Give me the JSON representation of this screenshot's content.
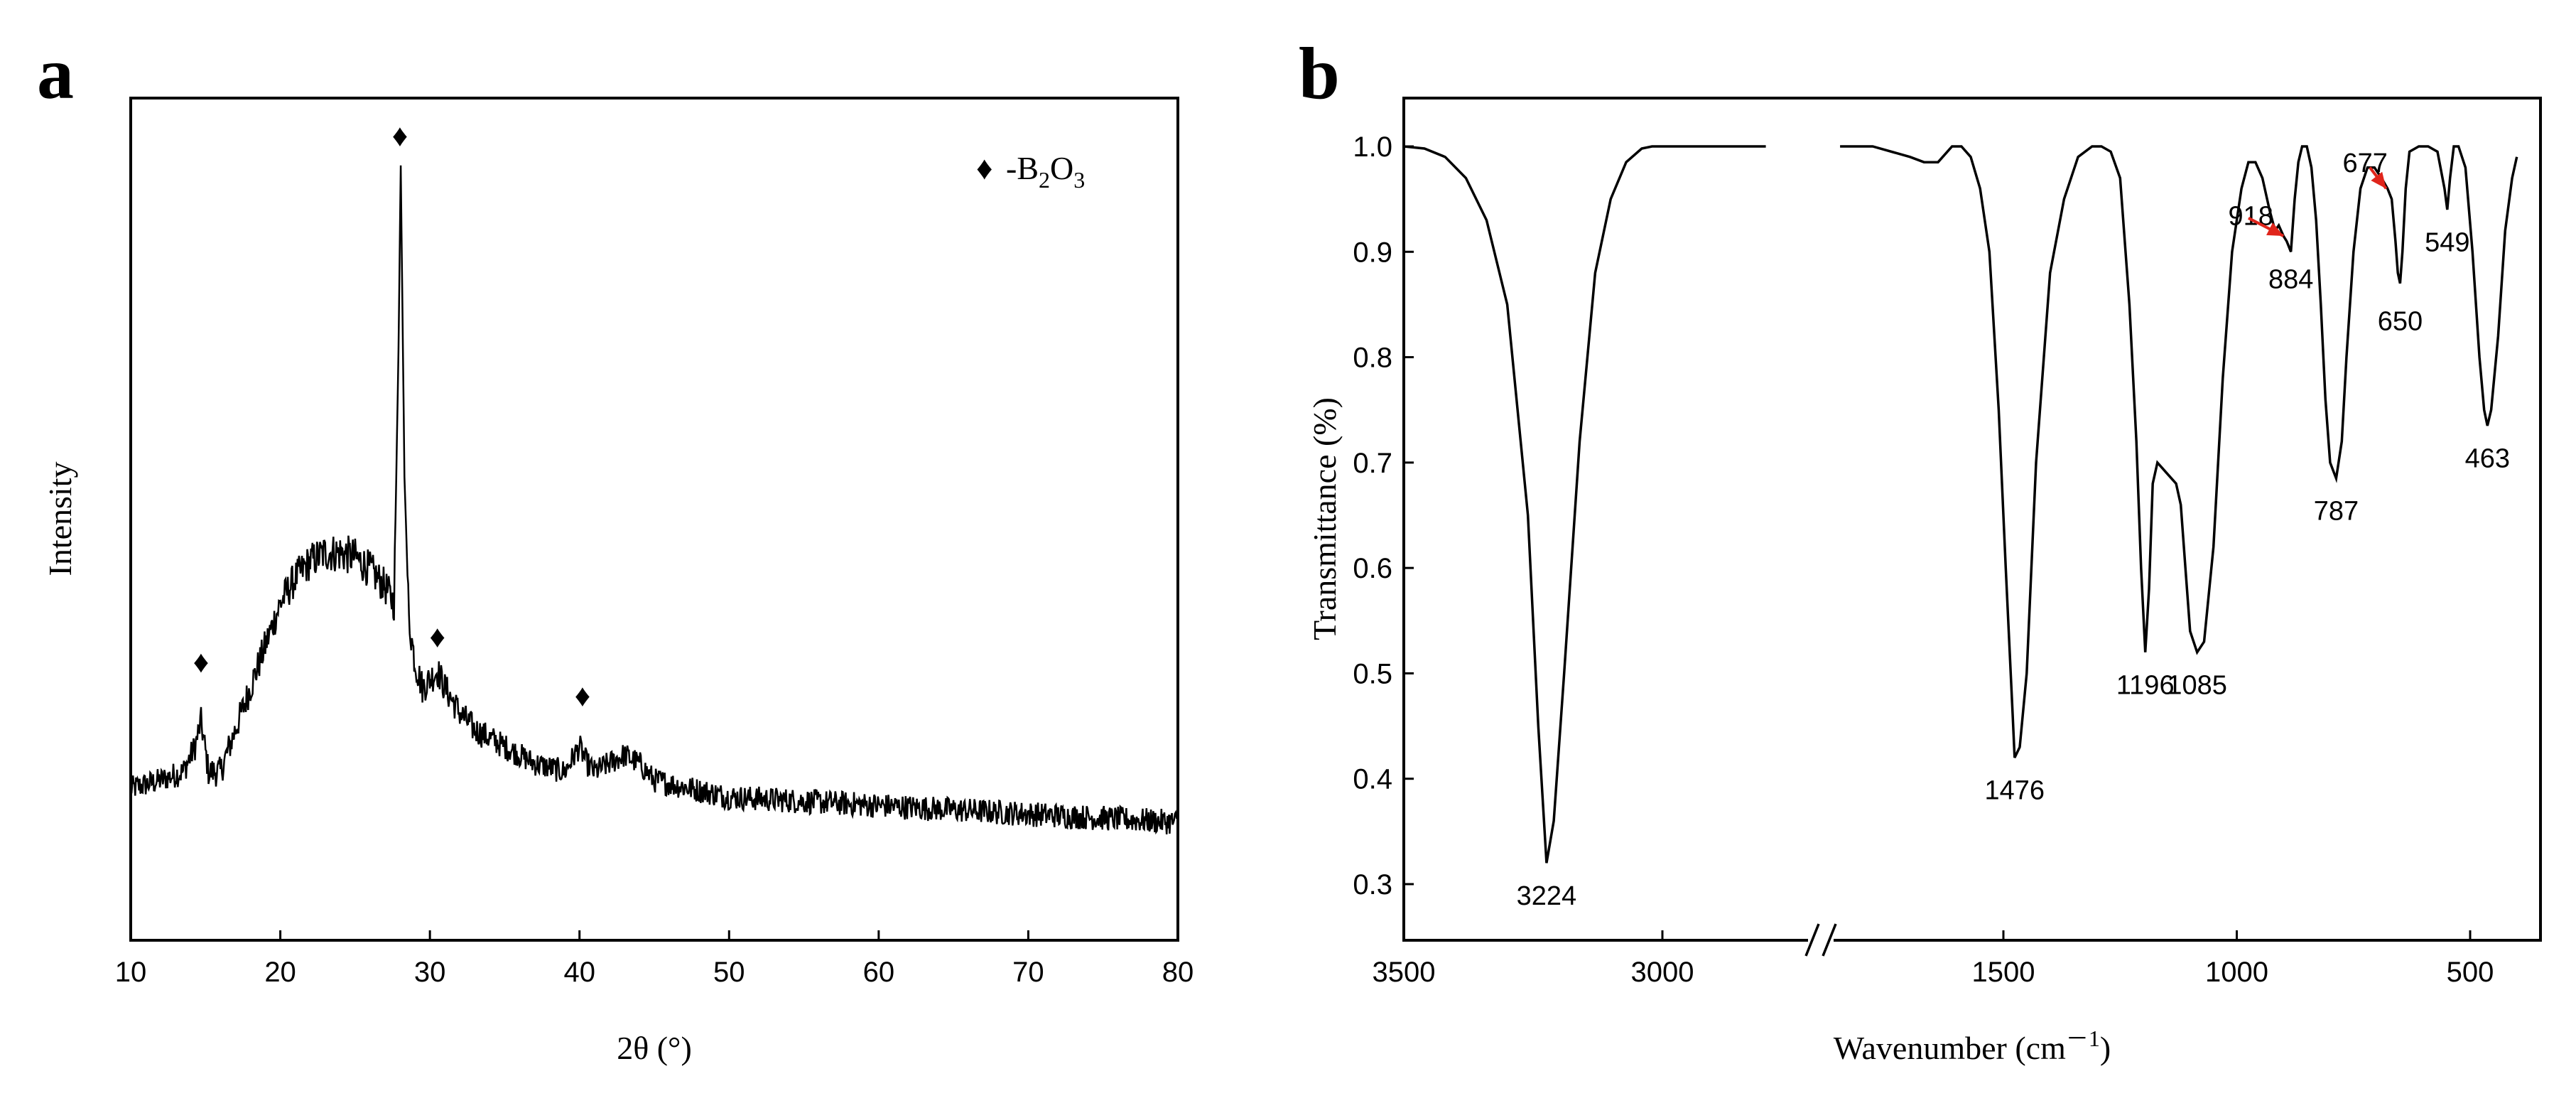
{
  "chart_data": [
    {
      "panel_label": "a",
      "type": "line",
      "title": "",
      "xlabel": "2θ (°)",
      "ylabel": "Intensity",
      "xlim": [
        10,
        80
      ],
      "ylim": [
        0,
        1
      ],
      "xticks": [
        10,
        20,
        30,
        40,
        50,
        60,
        70,
        80
      ],
      "legend": {
        "marker": "♦",
        "text": "-B",
        "sub1": "2",
        "mid": "O",
        "sub2": "3",
        "position": "top-right"
      },
      "baseline_points": [
        [
          10,
          0.18
        ],
        [
          12,
          0.19
        ],
        [
          13.5,
          0.2
        ],
        [
          14.3,
          0.23
        ],
        [
          14.7,
          0.26
        ],
        [
          15.2,
          0.2
        ],
        [
          16,
          0.2
        ],
        [
          17,
          0.25
        ],
        [
          18,
          0.3
        ],
        [
          19,
          0.35
        ],
        [
          20,
          0.4
        ],
        [
          21,
          0.43
        ],
        [
          22,
          0.45
        ],
        [
          23,
          0.46
        ],
        [
          24,
          0.46
        ],
        [
          25,
          0.455
        ],
        [
          26,
          0.44
        ],
        [
          27,
          0.42
        ],
        [
          27.6,
          0.4
        ],
        [
          27.9,
          0.7
        ],
        [
          28.05,
          0.92
        ],
        [
          28.3,
          0.55
        ],
        [
          28.6,
          0.38
        ],
        [
          29,
          0.33
        ],
        [
          29.5,
          0.3
        ],
        [
          30,
          0.31
        ],
        [
          30.5,
          0.32
        ],
        [
          31,
          0.3
        ],
        [
          32,
          0.27
        ],
        [
          33,
          0.25
        ],
        [
          35,
          0.23
        ],
        [
          37,
          0.21
        ],
        [
          39,
          0.2
        ],
        [
          40,
          0.23
        ],
        [
          40.5,
          0.21
        ],
        [
          41,
          0.2
        ],
        [
          42,
          0.21
        ],
        [
          43,
          0.22
        ],
        [
          44,
          0.21
        ],
        [
          45,
          0.19
        ],
        [
          50,
          0.17
        ],
        [
          55,
          0.165
        ],
        [
          60,
          0.16
        ],
        [
          65,
          0.155
        ],
        [
          70,
          0.15
        ],
        [
          75,
          0.145
        ],
        [
          80,
          0.14
        ]
      ],
      "noise_amplitude": 0.03,
      "peak_markers": [
        {
          "x": 14.7,
          "y": 0.33
        },
        {
          "x": 28.0,
          "y": 0.955
        },
        {
          "x": 30.5,
          "y": 0.36
        },
        {
          "x": 40.2,
          "y": 0.29
        }
      ]
    },
    {
      "panel_label": "b",
      "type": "line",
      "title": "",
      "xlabel": "Wavenumber (cm",
      "xlabel_sup": "－1",
      "xlabel_close": ")",
      "ylabel": "Transmittance (%)",
      "xlim": [
        3500,
        400
      ],
      "x_break": [
        2800,
        1850
      ],
      "ylim": [
        0.25,
        1.05
      ],
      "xticks": [
        3500,
        3000,
        1500,
        1000,
        500
      ],
      "yticks": [
        0.3,
        0.4,
        0.5,
        0.6,
        0.7,
        0.8,
        0.9,
        1.0
      ],
      "x_segment1": [
        3500,
        3460,
        3420,
        3380,
        3340,
        3300,
        3260,
        3240,
        3224,
        3210,
        3190,
        3160,
        3130,
        3100,
        3070,
        3040,
        3020,
        3000,
        2950,
        2900,
        2850,
        2800
      ],
      "y_segment1": [
        1.0,
        0.998,
        0.99,
        0.97,
        0.93,
        0.85,
        0.65,
        0.45,
        0.32,
        0.36,
        0.5,
        0.72,
        0.88,
        0.95,
        0.985,
        0.998,
        1.0,
        1.0,
        1.0,
        1.0,
        1.0,
        1.0
      ],
      "x_segment2": [
        1850,
        1780,
        1700,
        1670,
        1640,
        1610,
        1590,
        1570,
        1550,
        1530,
        1510,
        1495,
        1480,
        1476,
        1465,
        1450,
        1430,
        1400,
        1370,
        1340,
        1310,
        1290,
        1270,
        1250,
        1230,
        1215,
        1205,
        1196,
        1188,
        1180,
        1170,
        1160,
        1150,
        1140,
        1130,
        1120,
        1110,
        1100,
        1085,
        1070,
        1050,
        1030,
        1010,
        990,
        975,
        960,
        945,
        930,
        918,
        910,
        900,
        893,
        884,
        876,
        868,
        860,
        850,
        840,
        830,
        820,
        810,
        800,
        787,
        775,
        765,
        750,
        735,
        720,
        705,
        690,
        677,
        668,
        660,
        655,
        650,
        645,
        638,
        630,
        610,
        590,
        570,
        555,
        549,
        543,
        535,
        525,
        510,
        495,
        480,
        470,
        463,
        455,
        440,
        425,
        410,
        400
      ],
      "y_segment2": [
        1.0,
        1.0,
        0.99,
        0.985,
        0.985,
        1.0,
        1.0,
        0.99,
        0.96,
        0.9,
        0.75,
        0.6,
        0.46,
        0.42,
        0.43,
        0.5,
        0.7,
        0.88,
        0.95,
        0.99,
        1.0,
        1.0,
        0.995,
        0.97,
        0.85,
        0.72,
        0.6,
        0.52,
        0.58,
        0.68,
        0.7,
        0.695,
        0.69,
        0.685,
        0.68,
        0.66,
        0.6,
        0.54,
        0.52,
        0.53,
        0.62,
        0.78,
        0.9,
        0.96,
        0.985,
        0.985,
        0.97,
        0.94,
        0.92,
        0.925,
        0.915,
        0.91,
        0.9,
        0.95,
        0.985,
        1.0,
        1.0,
        0.98,
        0.93,
        0.85,
        0.76,
        0.7,
        0.685,
        0.72,
        0.8,
        0.9,
        0.96,
        0.98,
        0.98,
        0.97,
        0.96,
        0.95,
        0.91,
        0.88,
        0.87,
        0.9,
        0.96,
        0.995,
        1.0,
        1.0,
        0.995,
        0.96,
        0.94,
        0.97,
        1.0,
        1.0,
        0.98,
        0.9,
        0.8,
        0.75,
        0.735,
        0.75,
        0.82,
        0.92,
        0.97,
        0.99
      ],
      "peak_labels": [
        {
          "text": "3224",
          "x": 3224,
          "y": 0.29
        },
        {
          "text": "1476",
          "x": 1476,
          "y": 0.39
        },
        {
          "text": "1196",
          "x": 1196,
          "y": 0.49
        },
        {
          "text": "1085",
          "x": 1085,
          "y": 0.49
        },
        {
          "text": "918",
          "x": 970,
          "y": 0.935
        },
        {
          "text": "884",
          "x": 884,
          "y": 0.875
        },
        {
          "text": "787",
          "x": 787,
          "y": 0.655
        },
        {
          "text": "677",
          "x": 725,
          "y": 0.985
        },
        {
          "text": "650",
          "x": 650,
          "y": 0.835
        },
        {
          "text": "549",
          "x": 549,
          "y": 0.91
        },
        {
          "text": "463",
          "x": 463,
          "y": 0.705
        }
      ],
      "arrows": [
        {
          "from_x": 975,
          "from_y": 0.932,
          "to_x": 900,
          "to_y": 0.915,
          "color": "#e0251b"
        },
        {
          "from_x": 715,
          "from_y": 0.98,
          "to_x": 680,
          "to_y": 0.96,
          "color": "#e0251b"
        }
      ]
    }
  ]
}
